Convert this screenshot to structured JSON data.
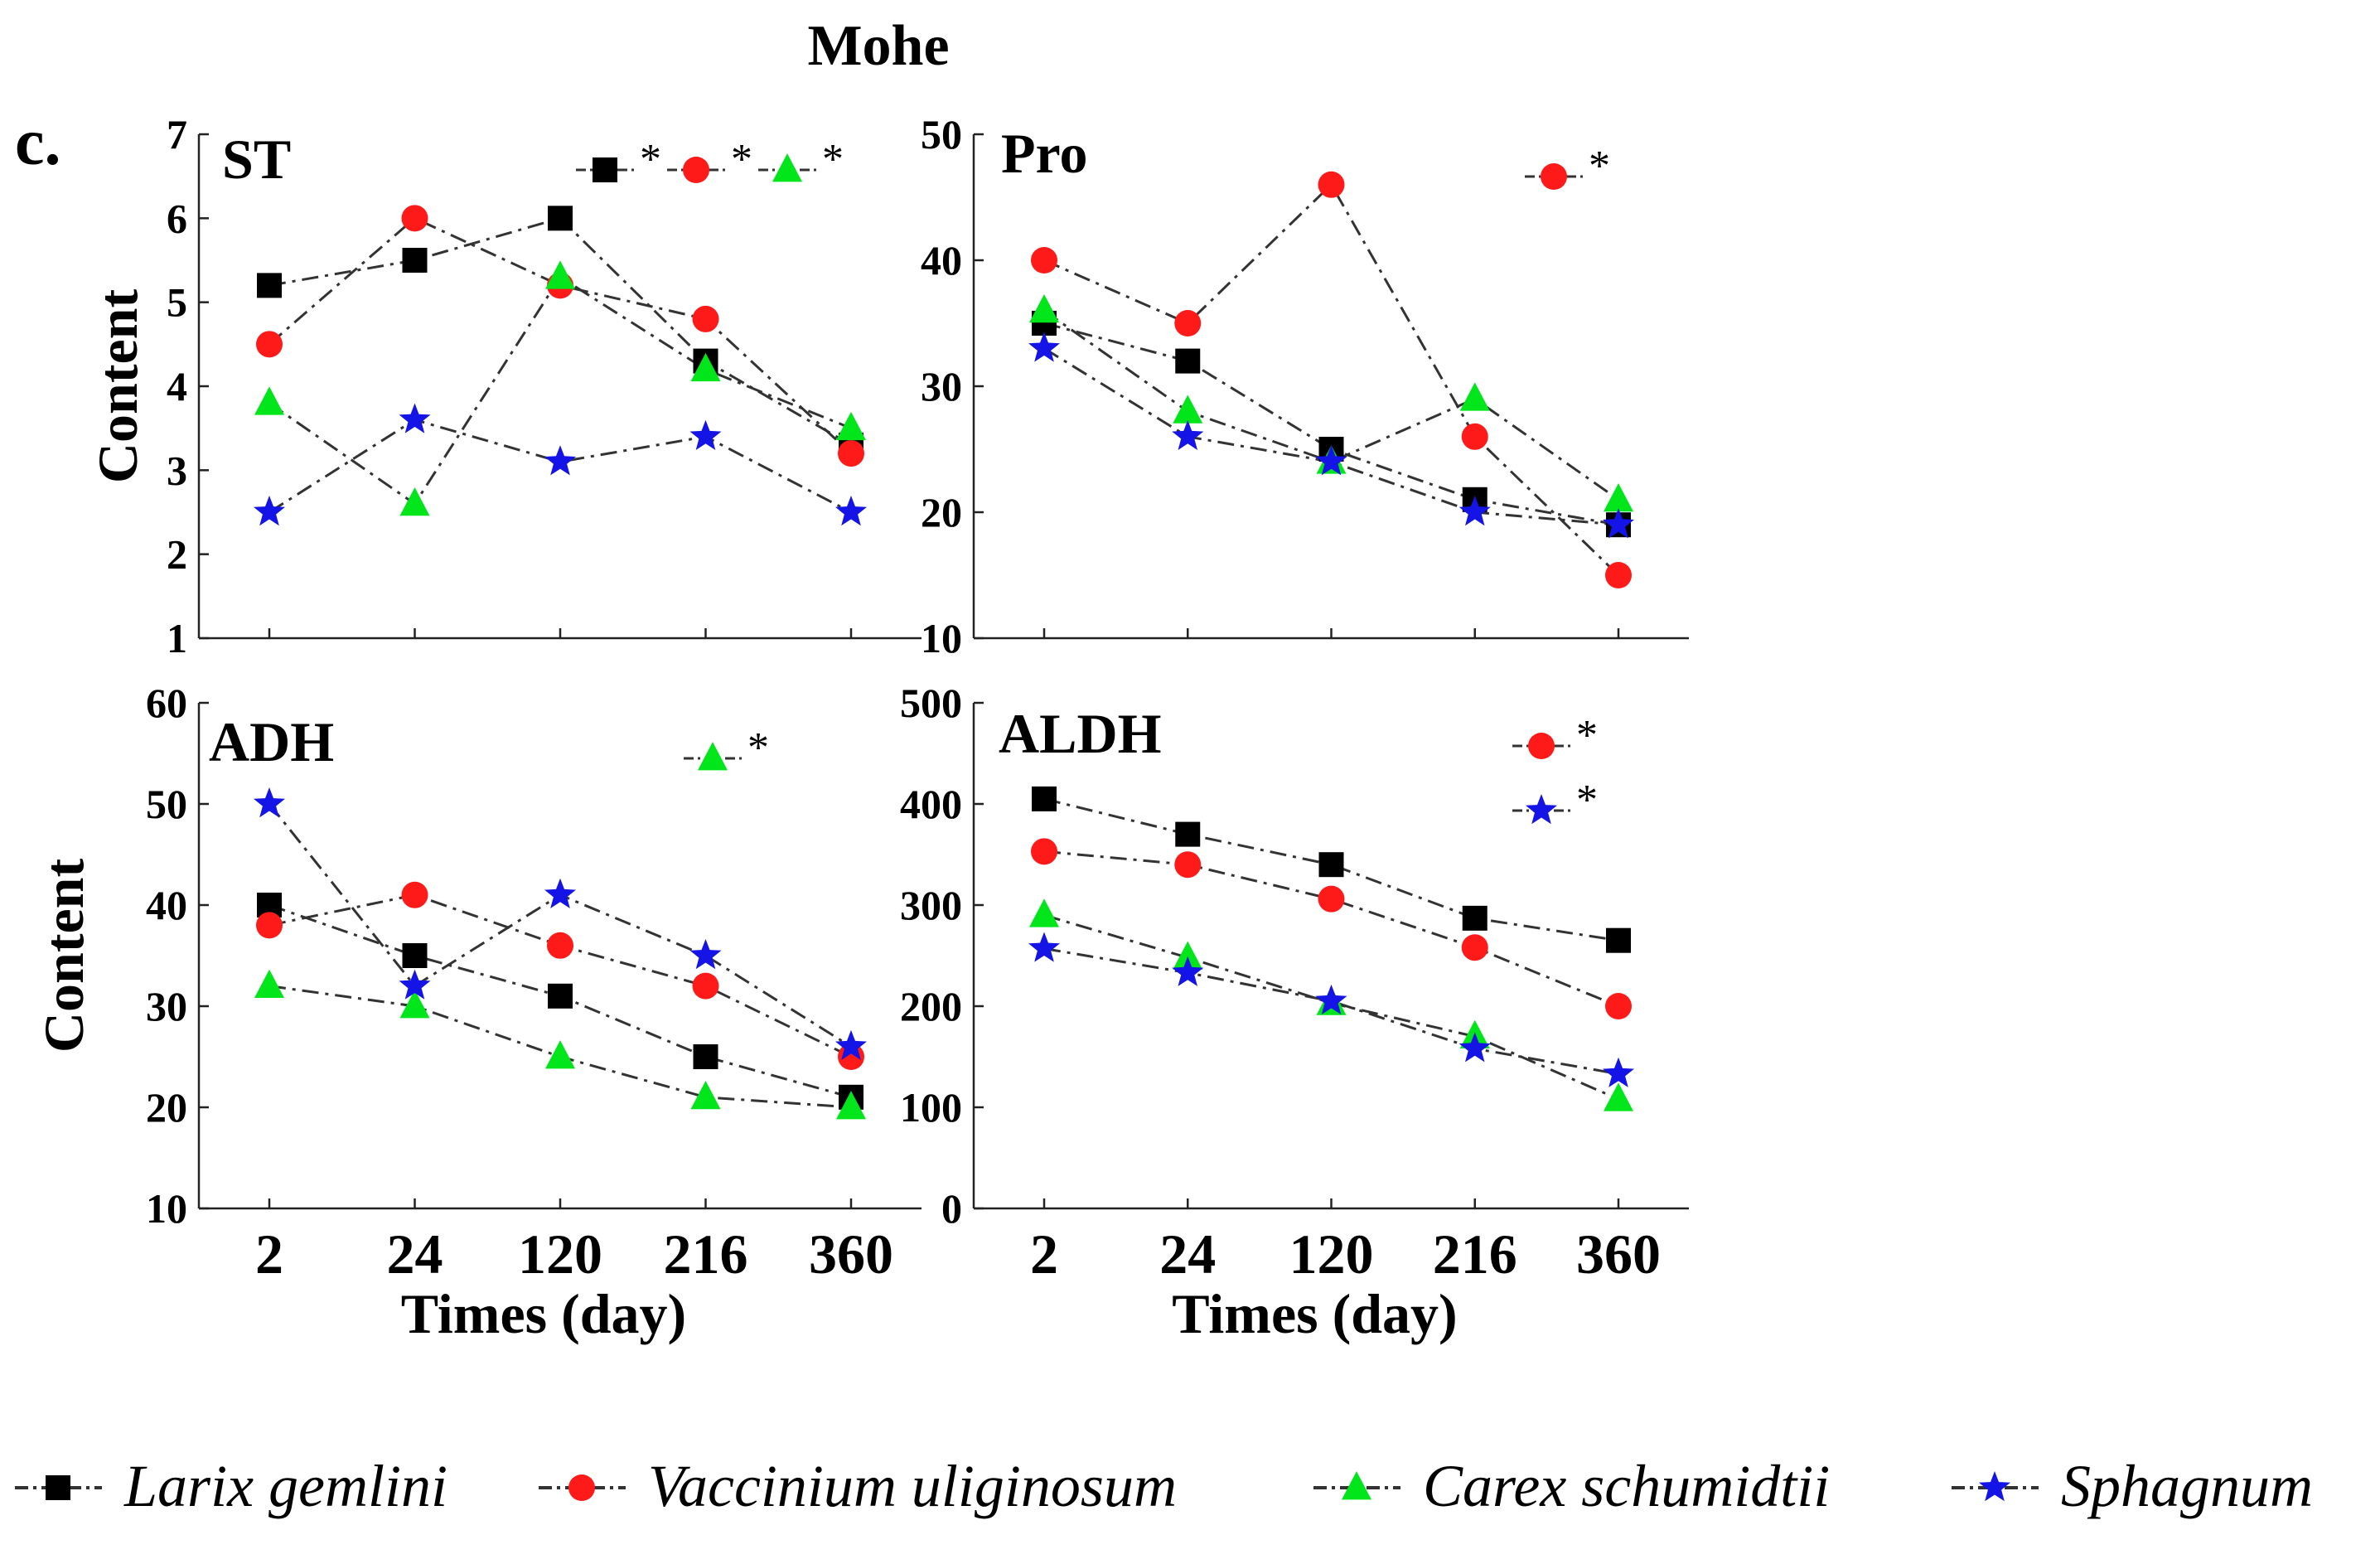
{
  "figure": {
    "title": "Mohe",
    "panel_label": "c."
  },
  "series_styles": [
    {
      "name": "Larix gemlini",
      "marker": "square",
      "color": "#000000"
    },
    {
      "name": "Vaccinium uliginosum",
      "marker": "circle",
      "color": "#ff1a1a"
    },
    {
      "name": "Carex schumidtii",
      "marker": "triangle",
      "color": "#00e61a"
    },
    {
      "name": "Sphagnum",
      "marker": "star",
      "color": "#1414e6"
    }
  ],
  "legend": {
    "entries": [
      "Larix gemlini",
      "Vaccinium uliginosum",
      "Carex schumidtii",
      "Sphagnum"
    ]
  },
  "chart_data": [
    {
      "type": "line",
      "title": "ST",
      "xlabel": "",
      "ylabel": "Content",
      "categories": [
        "2",
        "24",
        "120",
        "216",
        "360"
      ],
      "ylim": [
        1,
        7
      ],
      "yticks": [
        1,
        2,
        3,
        4,
        5,
        6,
        7
      ],
      "series": [
        {
          "name": "Larix gemlini",
          "values": [
            5.2,
            5.5,
            6.0,
            4.3,
            3.3
          ]
        },
        {
          "name": "Vaccinium uliginosum",
          "values": [
            4.5,
            6.0,
            5.2,
            4.8,
            3.2
          ]
        },
        {
          "name": "Carex schumidtii",
          "values": [
            3.8,
            2.6,
            5.3,
            4.2,
            3.5
          ]
        },
        {
          "name": "Sphagnum",
          "values": [
            2.5,
            3.6,
            3.1,
            3.4,
            2.5
          ]
        }
      ],
      "significance": [
        {
          "series": "Larix gemlini",
          "label": "*"
        },
        {
          "series": "Vaccinium uliginosum",
          "label": "*"
        },
        {
          "series": "Carex schumidtii",
          "label": "*"
        }
      ]
    },
    {
      "type": "line",
      "title": "Pro",
      "xlabel": "",
      "ylabel": "",
      "categories": [
        "2",
        "24",
        "120",
        "216",
        "360"
      ],
      "ylim": [
        10,
        50
      ],
      "yticks": [
        10,
        20,
        30,
        40,
        50
      ],
      "series": [
        {
          "name": "Larix gemlini",
          "values": [
            35,
            32,
            25,
            21,
            19
          ]
        },
        {
          "name": "Vaccinium uliginosum",
          "values": [
            40,
            35,
            46,
            26,
            15
          ]
        },
        {
          "name": "Carex schumidtii",
          "values": [
            36,
            28,
            24,
            29,
            21
          ]
        },
        {
          "name": "Sphagnum",
          "values": [
            33,
            26,
            24,
            20,
            19
          ]
        }
      ],
      "significance": [
        {
          "series": "Vaccinium uliginosum",
          "label": "*"
        }
      ]
    },
    {
      "type": "line",
      "title": "ADH",
      "xlabel": "Times (day)",
      "ylabel": "Content",
      "categories": [
        "2",
        "24",
        "120",
        "216",
        "360"
      ],
      "ylim": [
        10,
        60
      ],
      "yticks": [
        10,
        20,
        30,
        40,
        50,
        60
      ],
      "series": [
        {
          "name": "Larix gemlini",
          "values": [
            40,
            35,
            31,
            25,
            21
          ]
        },
        {
          "name": "Vaccinium uliginosum",
          "values": [
            38,
            41,
            36,
            32,
            25
          ]
        },
        {
          "name": "Carex schumidtii",
          "values": [
            32,
            30,
            25,
            21,
            20
          ]
        },
        {
          "name": "Sphagnum",
          "values": [
            50,
            32,
            41,
            35,
            26
          ]
        }
      ],
      "significance": [
        {
          "series": "Carex schumidtii",
          "label": "*"
        }
      ]
    },
    {
      "type": "line",
      "title": "ALDH",
      "xlabel": "Times (day)",
      "ylabel": "",
      "categories": [
        "2",
        "24",
        "120",
        "216",
        "360"
      ],
      "ylim": [
        0,
        500
      ],
      "yticks": [
        0,
        100,
        200,
        300,
        400,
        500
      ],
      "series": [
        {
          "name": "Larix gemlini",
          "values": [
            405,
            370,
            340,
            287,
            265
          ]
        },
        {
          "name": "Vaccinium uliginosum",
          "values": [
            353,
            340,
            306,
            258,
            200
          ]
        },
        {
          "name": "Carex schumidtii",
          "values": [
            290,
            248,
            203,
            170,
            108
          ]
        },
        {
          "name": "Sphagnum",
          "values": [
            257,
            233,
            205,
            158,
            133
          ]
        }
      ],
      "significance": [
        {
          "series": "Vaccinium uliginosum",
          "label": "*"
        },
        {
          "series": "Sphagnum",
          "label": "*"
        }
      ]
    }
  ]
}
